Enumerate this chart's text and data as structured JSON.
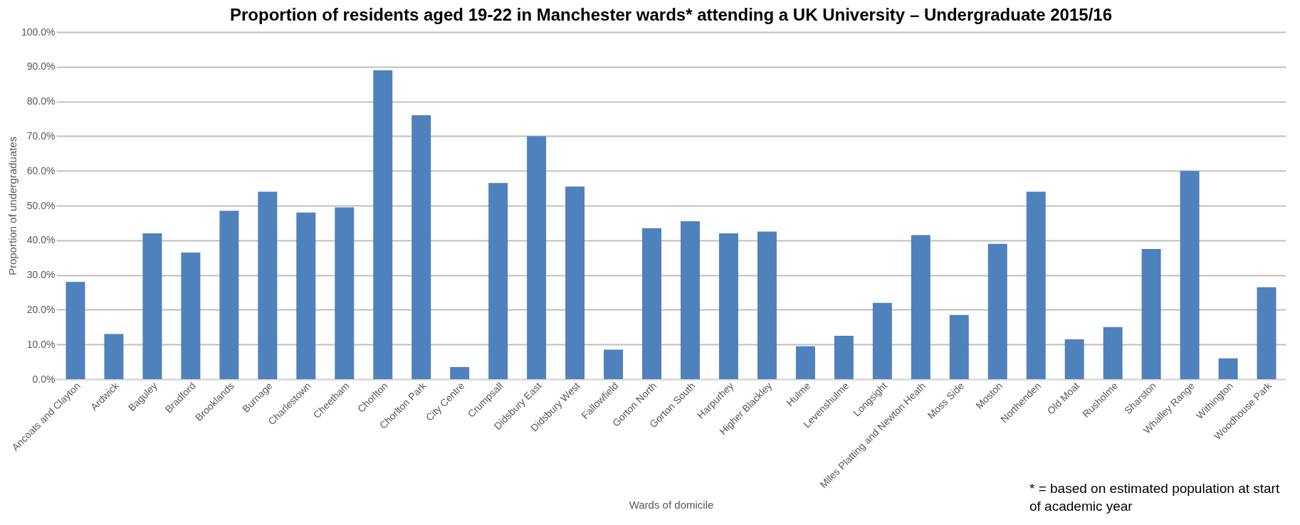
{
  "chart_data": {
    "type": "bar",
    "title": "Proportion of residents aged 19-22 in Manchester wards* attending a UK University – Undergraduate 2015/16",
    "xlabel": "Wards of domicile",
    "ylabel": "Proportion of undergraduates",
    "categories": [
      "Ancoats and Clayton",
      "Ardwick",
      "Baguley",
      "Bradford",
      "Brooklands",
      "Burnage",
      "Charlestown",
      "Cheetham",
      "Chorlton",
      "Chorlton Park",
      "City Centre",
      "Crumpsall",
      "Didsbury East",
      "Didsbury West",
      "Fallowfield",
      "Gorton North",
      "Gorton South",
      "Harpurhey",
      "Higher Blackley",
      "Hulme",
      "Levenshulme",
      "Longsight",
      "Miles Platting and Newton Heath",
      "Moss Side",
      "Moston",
      "Northenden",
      "Old Moat",
      "Rusholme",
      "Sharston",
      "Whalley Range",
      "Withington",
      "Woodhouse Park"
    ],
    "values": [
      28,
      13,
      42,
      36.5,
      48.5,
      54,
      48,
      49.5,
      89,
      76,
      3.5,
      56.5,
      70,
      55.5,
      8.5,
      43.5,
      45.5,
      42,
      42.5,
      9.5,
      12.5,
      22,
      41.5,
      18.5,
      39,
      54,
      11.5,
      15,
      37.5,
      60,
      6,
      26.5
    ],
    "color": "#4f81bd",
    "ylim": [
      0,
      100
    ],
    "yticks": [
      {
        "value": 0,
        "label": "0.0%"
      },
      {
        "value": 10,
        "label": "10.0%"
      },
      {
        "value": 20,
        "label": "20.0%"
      },
      {
        "value": 30,
        "label": "30.0%"
      },
      {
        "value": 40,
        "label": "40.0%"
      },
      {
        "value": 50,
        "label": "50.0%"
      },
      {
        "value": 60,
        "label": "60.0%"
      },
      {
        "value": 70,
        "label": "70.0%"
      },
      {
        "value": 80,
        "label": "80.0%"
      },
      {
        "value": 90,
        "label": "90.0%"
      },
      {
        "value": 100,
        "label": "100.0%"
      }
    ],
    "grid": "y",
    "annotations": [
      "* = based on estimated population at start of academic year"
    ]
  }
}
